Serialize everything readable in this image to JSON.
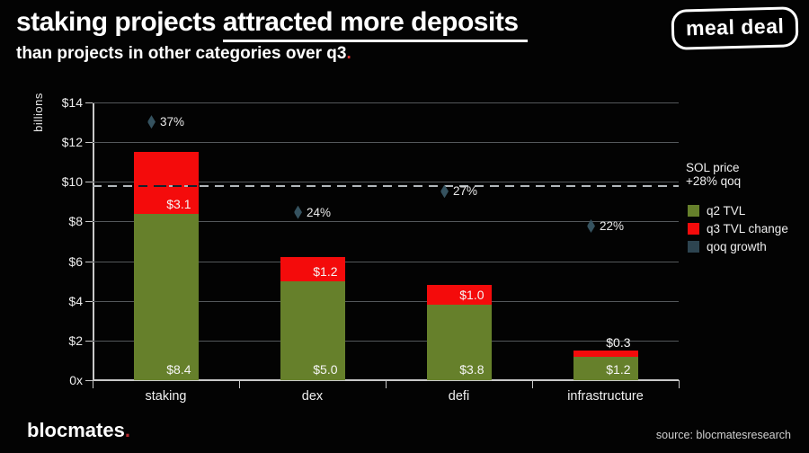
{
  "header": {
    "title_start": "staking projects ",
    "title_underline": "attracted more deposits",
    "subtitle_text": "than projects in other categories over q3",
    "subtitle_period": ".",
    "logo_text": "meal deal"
  },
  "side_labels": {
    "ref_line_line1": "SOL price",
    "ref_line_line2": "+28% qoq"
  },
  "legend": [
    {
      "label": "q2 TVL",
      "color": "#66802b"
    },
    {
      "label": "q3 TVL change",
      "color": "#f40b0b"
    },
    {
      "label": "qoq growth",
      "color": "#2d4450"
    }
  ],
  "footer": {
    "brand": "blocmates",
    "brand_period": ".",
    "source": "source: blocmatesresearch"
  },
  "chart_data": {
    "type": "bar",
    "stacked": true,
    "title": "staking projects attracted more deposits than projects in other categories over q3",
    "ylabel": "billions",
    "ylim": [
      0,
      14
    ],
    "grid": true,
    "legend_position": "right",
    "y_ticks": [
      {
        "value": 0,
        "label": "0x"
      },
      {
        "value": 2,
        "label": "$2"
      },
      {
        "value": 4,
        "label": "$4"
      },
      {
        "value": 6,
        "label": "$6"
      },
      {
        "value": 8,
        "label": "$8"
      },
      {
        "value": 10,
        "label": "$10"
      },
      {
        "value": 12,
        "label": "$12"
      },
      {
        "value": 14,
        "label": "$14"
      }
    ],
    "categories": [
      "staking",
      "dex",
      "defi",
      "infrastructure"
    ],
    "series": [
      {
        "name": "q2 TVL",
        "type": "bar",
        "color": "#66802b",
        "values": [
          8.4,
          5.0,
          3.8,
          1.2
        ],
        "labels": [
          "$8.4",
          "$5.0",
          "$3.8",
          "$1.2"
        ]
      },
      {
        "name": "q3 TVL change",
        "type": "bar",
        "color": "#f40b0b",
        "values": [
          3.1,
          1.2,
          1.0,
          0.3
        ],
        "labels": [
          "$3.1",
          "$1.2",
          "$1.0",
          "$0.3"
        ]
      },
      {
        "name": "qoq growth",
        "type": "marker",
        "color": "#35525f",
        "values_pct": [
          37,
          24,
          27,
          22
        ],
        "labels": [
          "37%",
          "24%",
          "27%",
          "22%"
        ],
        "axis_positions": [
          12.95,
          8.4,
          9.45,
          7.7
        ]
      }
    ],
    "reference_line": {
      "value": 9.8,
      "label": "SOL price +28% qoq",
      "style": "dashed"
    }
  }
}
